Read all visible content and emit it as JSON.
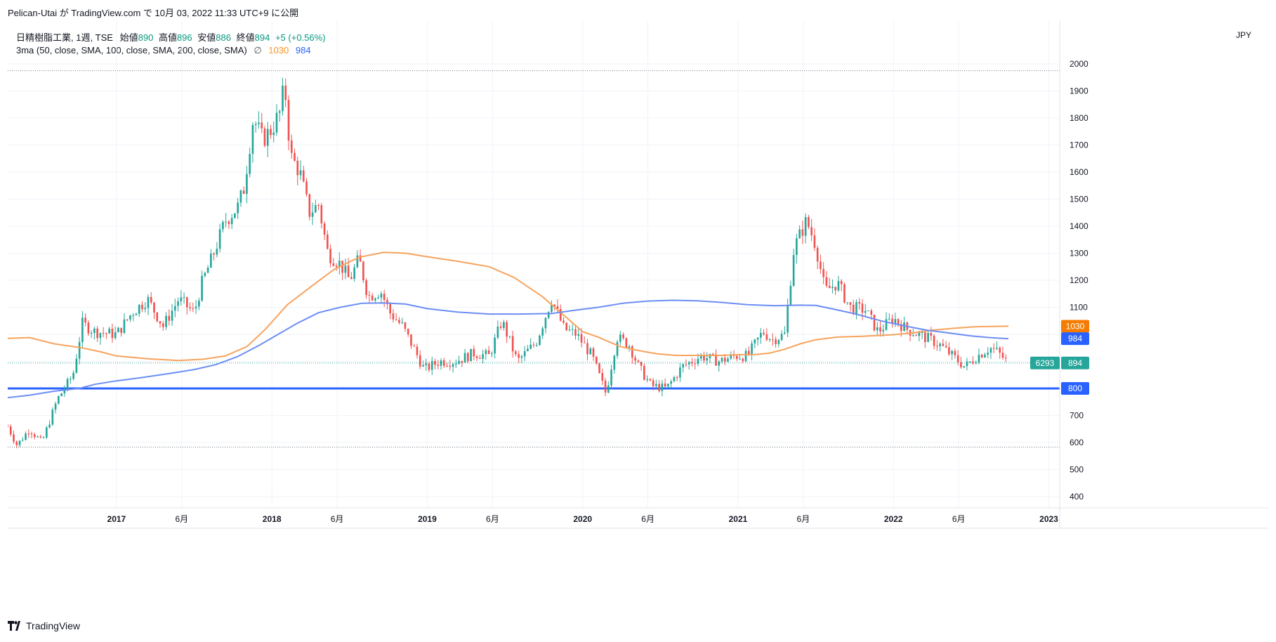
{
  "header": {
    "published": "Pelican-Utai が TradingView.com で 10月 03, 2022 11:33 UTC+9 に公開"
  },
  "legend": {
    "symbol": "日精樹脂工業, 1週, TSE",
    "open_label": "始値",
    "open": "890",
    "high_label": "高値",
    "high": "896",
    "low_label": "安値",
    "low": "886",
    "close_label": "終値",
    "close": "894",
    "change": "+5 (+0.56%)",
    "indicator": "3ma (50, close, SMA, 100, close, SMA, 200, close, SMA)",
    "indicator_symbol": "∅",
    "ma_value_1": "1030",
    "ma_value_2": "984"
  },
  "currency": "JPY",
  "footer": {
    "brand": "TradingView"
  },
  "colors": {
    "up": "#26a69a",
    "down": "#ef5350",
    "ma_orange": "#f7a35c",
    "ma_blue": "#6c8ef5",
    "hline": "#2962ff",
    "price_badge": "#26a69a"
  },
  "chart_data": {
    "type": "candlestick",
    "y_axis": {
      "min": 370,
      "max": 2100,
      "ticks": [
        400,
        500,
        600,
        700,
        800,
        900,
        1000,
        1100,
        1200,
        1300,
        1400,
        1500,
        1600,
        1700,
        1800,
        1900,
        2000
      ]
    },
    "x_axis": {
      "labels": [
        {
          "t": 2017.0,
          "label": "2017",
          "bold": true
        },
        {
          "t": 2017.42,
          "label": "6月",
          "bold": false
        },
        {
          "t": 2018.0,
          "label": "2018",
          "bold": true
        },
        {
          "t": 2018.42,
          "label": "6月",
          "bold": false
        },
        {
          "t": 2019.0,
          "label": "2019",
          "bold": true
        },
        {
          "t": 2019.42,
          "label": "6月",
          "bold": false
        },
        {
          "t": 2020.0,
          "label": "2020",
          "bold": true
        },
        {
          "t": 2020.42,
          "label": "6月",
          "bold": false
        },
        {
          "t": 2021.0,
          "label": "2021",
          "bold": true
        },
        {
          "t": 2021.42,
          "label": "6月",
          "bold": false
        },
        {
          "t": 2022.0,
          "label": "2022",
          "bold": true
        },
        {
          "t": 2022.42,
          "label": "6月",
          "bold": false
        },
        {
          "t": 2023.0,
          "label": "2023",
          "bold": true
        }
      ],
      "range": [
        2016.3,
        2023.07
      ]
    },
    "horizontal_line": 800,
    "dotted_levels": [
      1975,
      583
    ],
    "last_price": 894,
    "last_price_extra": "6293",
    "price_path": [
      [
        2016.3,
        660
      ],
      [
        2016.36,
        590
      ],
      [
        2016.44,
        650
      ],
      [
        2016.52,
        600
      ],
      [
        2016.62,
        760
      ],
      [
        2016.72,
        850
      ],
      [
        2016.78,
        1040
      ],
      [
        2016.86,
        1010
      ],
      [
        2017.0,
        1000
      ],
      [
        2017.1,
        1080
      ],
      [
        2017.2,
        1130
      ],
      [
        2017.3,
        1030
      ],
      [
        2017.4,
        1130
      ],
      [
        2017.5,
        1080
      ],
      [
        2017.55,
        1190
      ],
      [
        2017.62,
        1290
      ],
      [
        2017.7,
        1420
      ],
      [
        2017.78,
        1470
      ],
      [
        2017.82,
        1540
      ],
      [
        2017.88,
        1800
      ],
      [
        2017.94,
        1720
      ],
      [
        2018.0,
        1760
      ],
      [
        2018.06,
        1830
      ],
      [
        2018.08,
        1940
      ],
      [
        2018.12,
        1660
      ],
      [
        2018.18,
        1600
      ],
      [
        2018.24,
        1450
      ],
      [
        2018.3,
        1480
      ],
      [
        2018.36,
        1300
      ],
      [
        2018.44,
        1260
      ],
      [
        2018.5,
        1200
      ],
      [
        2018.56,
        1280
      ],
      [
        2018.62,
        1140
      ],
      [
        2018.7,
        1160
      ],
      [
        2018.76,
        1080
      ],
      [
        2018.84,
        1030
      ],
      [
        2018.92,
        940
      ],
      [
        2018.98,
        870
      ],
      [
        2019.08,
        900
      ],
      [
        2019.18,
        900
      ],
      [
        2019.3,
        930
      ],
      [
        2019.4,
        920
      ],
      [
        2019.48,
        1050
      ],
      [
        2019.58,
        900
      ],
      [
        2019.7,
        970
      ],
      [
        2019.8,
        1130
      ],
      [
        2019.88,
        1020
      ],
      [
        2019.96,
        1000
      ],
      [
        2020.06,
        920
      ],
      [
        2020.15,
        780
      ],
      [
        2020.22,
        990
      ],
      [
        2020.3,
        960
      ],
      [
        2020.36,
        880
      ],
      [
        2020.44,
        810
      ],
      [
        2020.54,
        800
      ],
      [
        2020.64,
        880
      ],
      [
        2020.76,
        920
      ],
      [
        2020.88,
        900
      ],
      [
        2020.98,
        920
      ],
      [
        2021.06,
        920
      ],
      [
        2021.16,
        1010
      ],
      [
        2021.22,
        980
      ],
      [
        2021.3,
        1000
      ],
      [
        2021.36,
        1320
      ],
      [
        2021.44,
        1420
      ],
      [
        2021.5,
        1330
      ],
      [
        2021.56,
        1160
      ],
      [
        2021.64,
        1190
      ],
      [
        2021.72,
        1100
      ],
      [
        2021.82,
        1090
      ],
      [
        2021.9,
        1010
      ],
      [
        2022.0,
        1060
      ],
      [
        2022.08,
        1020
      ],
      [
        2022.16,
        1000
      ],
      [
        2022.24,
        980
      ],
      [
        2022.3,
        960
      ],
      [
        2022.38,
        920
      ],
      [
        2022.46,
        880
      ],
      [
        2022.54,
        920
      ],
      [
        2022.62,
        950
      ],
      [
        2022.66,
        940
      ],
      [
        2022.74,
        894
      ]
    ],
    "series": [
      {
        "color": "#f7a35c",
        "points": [
          [
            2016.3,
            985
          ],
          [
            2016.44,
            988
          ],
          [
            2016.6,
            965
          ],
          [
            2016.78,
            950
          ],
          [
            2016.9,
            935
          ],
          [
            2017.0,
            920
          ],
          [
            2017.2,
            910
          ],
          [
            2017.4,
            903
          ],
          [
            2017.56,
            908
          ],
          [
            2017.7,
            920
          ],
          [
            2017.84,
            955
          ],
          [
            2017.96,
            1020
          ],
          [
            2018.1,
            1110
          ],
          [
            2018.26,
            1180
          ],
          [
            2018.4,
            1240
          ],
          [
            2018.56,
            1285
          ],
          [
            2018.72,
            1303
          ],
          [
            2018.86,
            1300
          ],
          [
            2019.0,
            1287
          ],
          [
            2019.2,
            1270
          ],
          [
            2019.4,
            1250
          ],
          [
            2019.56,
            1210
          ],
          [
            2019.74,
            1140
          ],
          [
            2019.9,
            1060
          ],
          [
            2020.0,
            1010
          ],
          [
            2020.1,
            990
          ],
          [
            2020.24,
            955
          ],
          [
            2020.36,
            940
          ],
          [
            2020.48,
            928
          ],
          [
            2020.6,
            922
          ],
          [
            2020.76,
            922
          ],
          [
            2020.9,
            922
          ],
          [
            2021.0,
            925
          ],
          [
            2021.1,
            925
          ],
          [
            2021.2,
            930
          ],
          [
            2021.3,
            945
          ],
          [
            2021.4,
            965
          ],
          [
            2021.5,
            980
          ],
          [
            2021.64,
            990
          ],
          [
            2021.8,
            993
          ],
          [
            2021.98,
            998
          ],
          [
            2022.12,
            1005
          ],
          [
            2022.24,
            1015
          ],
          [
            2022.38,
            1022
          ],
          [
            2022.52,
            1028
          ],
          [
            2022.74,
            1030
          ]
        ]
      },
      {
        "color": "#6c8ef5",
        "points": [
          [
            2016.3,
            766
          ],
          [
            2016.44,
            775
          ],
          [
            2016.6,
            790
          ],
          [
            2016.76,
            800
          ],
          [
            2016.86,
            815
          ],
          [
            2017.0,
            828
          ],
          [
            2017.16,
            840
          ],
          [
            2017.34,
            855
          ],
          [
            2017.5,
            870
          ],
          [
            2017.64,
            888
          ],
          [
            2017.78,
            918
          ],
          [
            2017.92,
            960
          ],
          [
            2018.04,
            1000
          ],
          [
            2018.16,
            1040
          ],
          [
            2018.3,
            1080
          ],
          [
            2018.44,
            1100
          ],
          [
            2018.58,
            1115
          ],
          [
            2018.72,
            1116
          ],
          [
            2018.86,
            1112
          ],
          [
            2019.0,
            1095
          ],
          [
            2019.2,
            1082
          ],
          [
            2019.4,
            1075
          ],
          [
            2019.6,
            1075
          ],
          [
            2019.8,
            1077
          ],
          [
            2019.96,
            1090
          ],
          [
            2020.1,
            1100
          ],
          [
            2020.26,
            1115
          ],
          [
            2020.42,
            1123
          ],
          [
            2020.58,
            1126
          ],
          [
            2020.74,
            1124
          ],
          [
            2020.9,
            1118
          ],
          [
            2021.06,
            1110
          ],
          [
            2021.24,
            1106
          ],
          [
            2021.4,
            1108
          ],
          [
            2021.5,
            1107
          ],
          [
            2021.6,
            1095
          ],
          [
            2021.76,
            1075
          ],
          [
            2021.92,
            1050
          ],
          [
            2022.08,
            1030
          ],
          [
            2022.22,
            1015
          ],
          [
            2022.36,
            1005
          ],
          [
            2022.5,
            994
          ],
          [
            2022.62,
            988
          ],
          [
            2022.74,
            984
          ]
        ]
      }
    ]
  }
}
